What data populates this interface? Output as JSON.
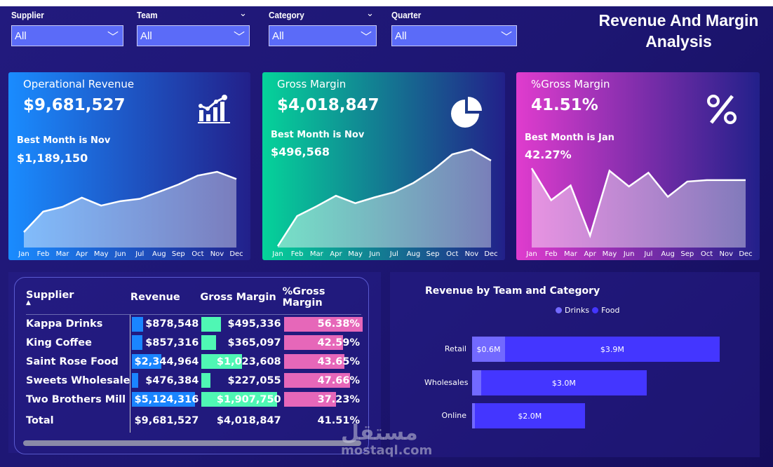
{
  "filters": [
    {
      "label": "Supplier",
      "value": "All"
    },
    {
      "label": "Team",
      "value": "All"
    },
    {
      "label": "Category",
      "value": "All"
    },
    {
      "label": "Quarter",
      "value": "All"
    }
  ],
  "title": "Revenue And Margin Analysis",
  "cards": [
    {
      "title": "Operational Revenue",
      "value": "$9,681,527",
      "best_label": "Best Month is Nov",
      "best_value": "$1,189,150",
      "icon": "bar-line-chart-icon",
      "colors": [
        "#1a8cff",
        "#22208a"
      ]
    },
    {
      "title": "Gross Margin",
      "value": "$4,018,847",
      "best_label": "Best Month is Nov",
      "best_value": "$496,568",
      "icon": "pie-chart-icon",
      "colors": [
        "#05d39a",
        "#22208a"
      ]
    },
    {
      "title": "%Gross Margin",
      "value": "41.51%",
      "best_label": "Best Month is Jan",
      "best_value": "42.27%",
      "icon": "percent-icon",
      "colors": [
        "#e03cce",
        "#22208a"
      ]
    }
  ],
  "chart_data": [
    {
      "type": "area",
      "categories": [
        "Jan",
        "Feb",
        "Mar",
        "Apr",
        "May",
        "Jun",
        "Jul",
        "Aug",
        "Sep",
        "Oct",
        "Nov",
        "Dec"
      ],
      "values": [
        245000,
        566000,
        640000,
        785000,
        660000,
        730000,
        766000,
        876000,
        990000,
        1130000,
        1189150,
        1076000
      ]
    },
    {
      "type": "area",
      "categories": [
        "Jan",
        "Feb",
        "Mar",
        "Apr",
        "May",
        "Jun",
        "Jul",
        "Aug",
        "Sep",
        "Oct",
        "Nov",
        "Dec"
      ],
      "values": [
        120000,
        237000,
        275000,
        316000,
        287000,
        310000,
        330000,
        366000,
        415000,
        477000,
        496568,
        453000
      ]
    },
    {
      "type": "area",
      "categories": [
        "Jan",
        "Feb",
        "Mar",
        "Apr",
        "May",
        "Jun",
        "Jul",
        "Aug",
        "Sep",
        "Oct",
        "Nov",
        "Dec"
      ],
      "values": [
        42.27,
        41.62,
        41.92,
        40.9,
        42.22,
        41.9,
        42.18,
        41.69,
        42.0,
        42.03,
        42.03,
        42.03
      ]
    },
    {
      "type": "bar",
      "title": "Revenue by Team and Category",
      "categories": [
        "Retail",
        "Wholesales",
        "Online"
      ],
      "series": [
        {
          "name": "Drinks",
          "values": [
            0.6,
            0.17,
            0.05
          ],
          "labels": [
            "$0.6M",
            "",
            ""
          ],
          "color": "#7269ff"
        },
        {
          "name": "Food",
          "values": [
            3.9,
            3.0,
            2.0
          ],
          "labels": [
            "$3.9M",
            "$3.0M",
            "$2.0M"
          ],
          "color": "#4436ff"
        }
      ]
    }
  ],
  "table": {
    "headers": [
      "Supplier",
      "Revenue",
      "Gross Margin",
      "%Gross Margin"
    ],
    "rows": [
      {
        "supplier": "Kappa Drinks",
        "revenue": "$878,548",
        "rev": 878548,
        "gm": "$495,336",
        "gmv": 495336,
        "pct": "56.38%",
        "pctv": 56.38
      },
      {
        "supplier": "King Coffee",
        "revenue": "$857,316",
        "rev": 857316,
        "gm": "$365,097",
        "gmv": 365097,
        "pct": "42.59%",
        "pctv": 42.59
      },
      {
        "supplier": "Saint Rose Food",
        "revenue": "$2,344,964",
        "rev": 2344964,
        "gm": "$1,023,608",
        "gmv": 1023608,
        "pct": "43.65%",
        "pctv": 43.65
      },
      {
        "supplier": "Sweets Wholesale",
        "revenue": "$476,384",
        "rev": 476384,
        "gm": "$227,055",
        "gmv": 227055,
        "pct": "47.66%",
        "pctv": 47.66
      },
      {
        "supplier": "Two Brothers Mill",
        "revenue": "$5,124,316",
        "rev": 5124316,
        "gm": "$1,907,750",
        "gmv": 1907750,
        "pct": "37.23%",
        "pctv": 37.23
      }
    ],
    "total": {
      "label": "Total",
      "revenue": "$9,681,527",
      "gm": "$4,018,847",
      "pct": "41.51%"
    },
    "bar_colors": {
      "revenue": "#1a85ff",
      "gm": "#4ff7b4",
      "pct": "#e667b9"
    }
  },
  "watermark": {
    "arabic": "مستقل",
    "latin": "mostaql.com"
  }
}
